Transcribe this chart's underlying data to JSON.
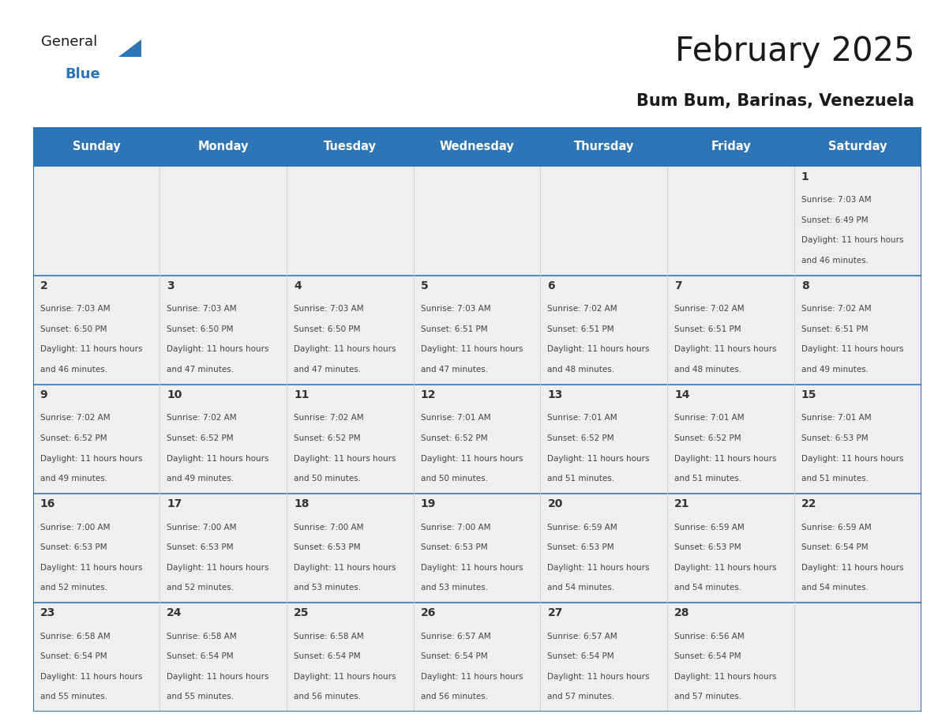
{
  "title": "February 2025",
  "subtitle": "Bum Bum, Barinas, Venezuela",
  "days_of_week": [
    "Sunday",
    "Monday",
    "Tuesday",
    "Wednesday",
    "Thursday",
    "Friday",
    "Saturday"
  ],
  "header_bg": "#2E75B6",
  "header_text": "#FFFFFF",
  "cell_bg": "#EFEFEF",
  "border_color": "#2E75B6",
  "grid_line_color": "#CCCCCC",
  "text_color": "#444444",
  "day_number_color": "#333333",
  "calendar_data": [
    [
      null,
      null,
      null,
      null,
      null,
      null,
      {
        "day": 1,
        "sunrise": "7:03 AM",
        "sunset": "6:49 PM",
        "daylight": "11 hours and 46 minutes."
      }
    ],
    [
      {
        "day": 2,
        "sunrise": "7:03 AM",
        "sunset": "6:50 PM",
        "daylight": "11 hours and 46 minutes."
      },
      {
        "day": 3,
        "sunrise": "7:03 AM",
        "sunset": "6:50 PM",
        "daylight": "11 hours and 47 minutes."
      },
      {
        "day": 4,
        "sunrise": "7:03 AM",
        "sunset": "6:50 PM",
        "daylight": "11 hours and 47 minutes."
      },
      {
        "day": 5,
        "sunrise": "7:03 AM",
        "sunset": "6:51 PM",
        "daylight": "11 hours and 47 minutes."
      },
      {
        "day": 6,
        "sunrise": "7:02 AM",
        "sunset": "6:51 PM",
        "daylight": "11 hours and 48 minutes."
      },
      {
        "day": 7,
        "sunrise": "7:02 AM",
        "sunset": "6:51 PM",
        "daylight": "11 hours and 48 minutes."
      },
      {
        "day": 8,
        "sunrise": "7:02 AM",
        "sunset": "6:51 PM",
        "daylight": "11 hours and 49 minutes."
      }
    ],
    [
      {
        "day": 9,
        "sunrise": "7:02 AM",
        "sunset": "6:52 PM",
        "daylight": "11 hours and 49 minutes."
      },
      {
        "day": 10,
        "sunrise": "7:02 AM",
        "sunset": "6:52 PM",
        "daylight": "11 hours and 49 minutes."
      },
      {
        "day": 11,
        "sunrise": "7:02 AM",
        "sunset": "6:52 PM",
        "daylight": "11 hours and 50 minutes."
      },
      {
        "day": 12,
        "sunrise": "7:01 AM",
        "sunset": "6:52 PM",
        "daylight": "11 hours and 50 minutes."
      },
      {
        "day": 13,
        "sunrise": "7:01 AM",
        "sunset": "6:52 PM",
        "daylight": "11 hours and 51 minutes."
      },
      {
        "day": 14,
        "sunrise": "7:01 AM",
        "sunset": "6:52 PM",
        "daylight": "11 hours and 51 minutes."
      },
      {
        "day": 15,
        "sunrise": "7:01 AM",
        "sunset": "6:53 PM",
        "daylight": "11 hours and 51 minutes."
      }
    ],
    [
      {
        "day": 16,
        "sunrise": "7:00 AM",
        "sunset": "6:53 PM",
        "daylight": "11 hours and 52 minutes."
      },
      {
        "day": 17,
        "sunrise": "7:00 AM",
        "sunset": "6:53 PM",
        "daylight": "11 hours and 52 minutes."
      },
      {
        "day": 18,
        "sunrise": "7:00 AM",
        "sunset": "6:53 PM",
        "daylight": "11 hours and 53 minutes."
      },
      {
        "day": 19,
        "sunrise": "7:00 AM",
        "sunset": "6:53 PM",
        "daylight": "11 hours and 53 minutes."
      },
      {
        "day": 20,
        "sunrise": "6:59 AM",
        "sunset": "6:53 PM",
        "daylight": "11 hours and 54 minutes."
      },
      {
        "day": 21,
        "sunrise": "6:59 AM",
        "sunset": "6:53 PM",
        "daylight": "11 hours and 54 minutes."
      },
      {
        "day": 22,
        "sunrise": "6:59 AM",
        "sunset": "6:54 PM",
        "daylight": "11 hours and 54 minutes."
      }
    ],
    [
      {
        "day": 23,
        "sunrise": "6:58 AM",
        "sunset": "6:54 PM",
        "daylight": "11 hours and 55 minutes."
      },
      {
        "day": 24,
        "sunrise": "6:58 AM",
        "sunset": "6:54 PM",
        "daylight": "11 hours and 55 minutes."
      },
      {
        "day": 25,
        "sunrise": "6:58 AM",
        "sunset": "6:54 PM",
        "daylight": "11 hours and 56 minutes."
      },
      {
        "day": 26,
        "sunrise": "6:57 AM",
        "sunset": "6:54 PM",
        "daylight": "11 hours and 56 minutes."
      },
      {
        "day": 27,
        "sunrise": "6:57 AM",
        "sunset": "6:54 PM",
        "daylight": "11 hours and 57 minutes."
      },
      {
        "day": 28,
        "sunrise": "6:56 AM",
        "sunset": "6:54 PM",
        "daylight": "11 hours and 57 minutes."
      },
      null
    ]
  ]
}
